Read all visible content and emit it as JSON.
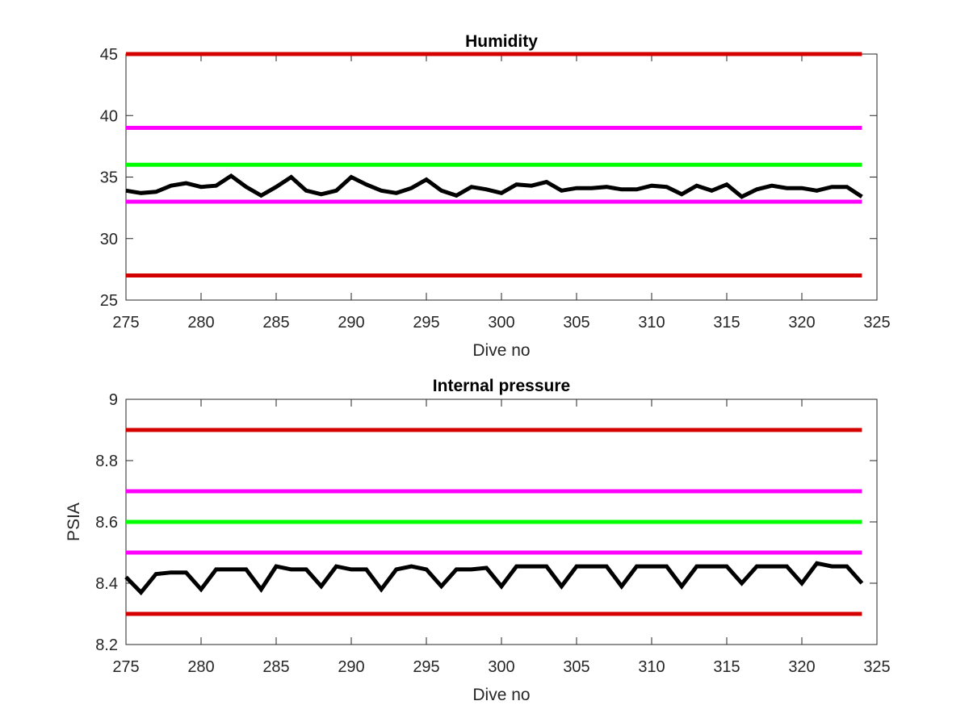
{
  "chart_data": [
    {
      "type": "line",
      "title": "Humidity",
      "xlabel": "Dive no",
      "ylabel": "",
      "xlim": [
        275,
        325
      ],
      "ylim": [
        25,
        45
      ],
      "xticks": [
        275,
        280,
        285,
        290,
        295,
        300,
        305,
        310,
        315,
        320,
        325
      ],
      "yticks": [
        25,
        30,
        35,
        40,
        45
      ],
      "xtick_labels": [
        "275",
        "280",
        "285",
        "290",
        "295",
        "300",
        "305",
        "310",
        "315",
        "320",
        "325"
      ],
      "ytick_labels": [
        "25",
        "30",
        "35",
        "40",
        "45"
      ],
      "grid": false,
      "legend": "none",
      "reference_lines": [
        {
          "y": 45,
          "color": "#d40000"
        },
        {
          "y": 39,
          "color": "#ff00ff"
        },
        {
          "y": 36,
          "color": "#00ff00"
        },
        {
          "y": 33,
          "color": "#ff00ff"
        },
        {
          "y": 27,
          "color": "#d40000"
        }
      ],
      "series": [
        {
          "color": "#000000",
          "x": [
            275,
            276,
            277,
            278,
            279,
            280,
            281,
            282,
            283,
            284,
            285,
            286,
            287,
            288,
            289,
            290,
            291,
            292,
            293,
            294,
            295,
            296,
            297,
            298,
            299,
            300,
            301,
            302,
            303,
            304,
            305,
            306,
            307,
            308,
            309,
            310,
            311,
            312,
            313,
            314,
            315,
            316,
            317,
            318,
            319,
            320,
            321,
            322,
            323,
            324
          ],
          "y": [
            33.9,
            33.7,
            33.8,
            34.3,
            34.5,
            34.2,
            34.3,
            35.1,
            34.2,
            33.5,
            34.2,
            35.0,
            33.9,
            33.6,
            33.9,
            35.0,
            34.4,
            33.9,
            33.7,
            34.1,
            34.8,
            33.9,
            33.5,
            34.2,
            34.0,
            33.7,
            34.4,
            34.3,
            34.6,
            33.9,
            34.1,
            34.1,
            34.2,
            34.0,
            34.0,
            34.3,
            34.2,
            33.6,
            34.3,
            33.9,
            34.4,
            33.4,
            34.0,
            34.3,
            34.1,
            34.1,
            33.9,
            34.2,
            34.2,
            33.4
          ]
        }
      ]
    },
    {
      "type": "line",
      "title": "Internal pressure",
      "xlabel": "Dive no",
      "ylabel": "PSIA",
      "xlim": [
        275,
        325
      ],
      "ylim": [
        8.2,
        9
      ],
      "xticks": [
        275,
        280,
        285,
        290,
        295,
        300,
        305,
        310,
        315,
        320,
        325
      ],
      "yticks": [
        8.2,
        8.4,
        8.6,
        8.8,
        9
      ],
      "xtick_labels": [
        "275",
        "280",
        "285",
        "290",
        "295",
        "300",
        "305",
        "310",
        "315",
        "320",
        "325"
      ],
      "ytick_labels": [
        "8.2",
        "8.4",
        "8.6",
        "8.8",
        "9"
      ],
      "grid": false,
      "legend": "none",
      "reference_lines": [
        {
          "y": 8.9,
          "color": "#d40000"
        },
        {
          "y": 8.7,
          "color": "#ff00ff"
        },
        {
          "y": 8.6,
          "color": "#00ff00"
        },
        {
          "y": 8.5,
          "color": "#ff00ff"
        },
        {
          "y": 8.3,
          "color": "#d40000"
        }
      ],
      "series": [
        {
          "color": "#000000",
          "x": [
            275,
            276,
            277,
            278,
            279,
            280,
            281,
            282,
            283,
            284,
            285,
            286,
            287,
            288,
            289,
            290,
            291,
            292,
            293,
            294,
            295,
            296,
            297,
            298,
            299,
            300,
            301,
            302,
            303,
            304,
            305,
            306,
            307,
            308,
            309,
            310,
            311,
            312,
            313,
            314,
            315,
            316,
            317,
            318,
            319,
            320,
            321,
            322,
            323,
            324
          ],
          "y": [
            8.42,
            8.37,
            8.43,
            8.435,
            8.435,
            8.38,
            8.445,
            8.445,
            8.445,
            8.38,
            8.455,
            8.445,
            8.445,
            8.39,
            8.455,
            8.445,
            8.445,
            8.38,
            8.445,
            8.455,
            8.445,
            8.39,
            8.445,
            8.445,
            8.45,
            8.39,
            8.455,
            8.455,
            8.455,
            8.39,
            8.455,
            8.455,
            8.455,
            8.39,
            8.455,
            8.455,
            8.455,
            8.39,
            8.455,
            8.455,
            8.455,
            8.4,
            8.455,
            8.455,
            8.455,
            8.4,
            8.465,
            8.455,
            8.455,
            8.4
          ]
        }
      ]
    }
  ]
}
